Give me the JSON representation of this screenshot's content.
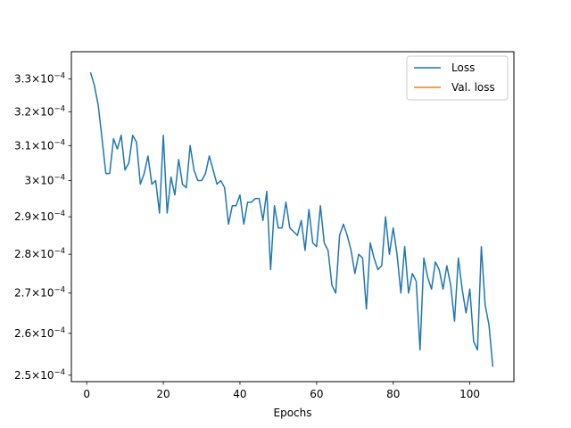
{
  "chart_data": {
    "type": "line",
    "title": "",
    "xlabel": "Epochs",
    "ylabel": "",
    "yscale": "log",
    "xlim": [
      -4,
      111.5
    ],
    "ylim": [
      0.0002485,
      0.0003385
    ],
    "xticks": [
      0,
      20,
      40,
      60,
      80,
      100
    ],
    "xtick_labels": [
      "0",
      "20",
      "40",
      "60",
      "80",
      "100"
    ],
    "yticks": [
      0.00025,
      0.00026,
      0.00027,
      0.00028,
      0.00029,
      0.0003,
      0.00031,
      0.00032,
      0.00033
    ],
    "ytick_labels": [
      {
        "mant": "2.5",
        "exp": "−4"
      },
      {
        "mant": "2.6",
        "exp": "−4"
      },
      {
        "mant": "2.7",
        "exp": "−4"
      },
      {
        "mant": "2.8",
        "exp": "−4"
      },
      {
        "mant": "2.9",
        "exp": "−4"
      },
      {
        "mant": "3",
        "exp": "−4"
      },
      {
        "mant": "3.1",
        "exp": "−4"
      },
      {
        "mant": "3.2",
        "exp": "−4"
      },
      {
        "mant": "3.3",
        "exp": "−4"
      }
    ],
    "legend_position": "top-right",
    "grid": false,
    "series": [
      {
        "name": "Loss",
        "color": "#1f77b4",
        "x": [
          1,
          2,
          3,
          4,
          5,
          6,
          7,
          8,
          9,
          10,
          11,
          12,
          13,
          14,
          15,
          16,
          17,
          18,
          19,
          20,
          21,
          22,
          23,
          24,
          25,
          26,
          27,
          28,
          29,
          30,
          31,
          32,
          33,
          34,
          35,
          36,
          37,
          38,
          39,
          40,
          41,
          42,
          43,
          44,
          45,
          46,
          47,
          48,
          49,
          50,
          51,
          52,
          53,
          54,
          55,
          56,
          57,
          58,
          59,
          60,
          61,
          62,
          63,
          64,
          65,
          66,
          67,
          68,
          69,
          70,
          71,
          72,
          73,
          74,
          75,
          76,
          77,
          78,
          79,
          80,
          81,
          82,
          83,
          84,
          85,
          86,
          87,
          88,
          89,
          90,
          91,
          92,
          93,
          94,
          95,
          96,
          97,
          98,
          99,
          100,
          101,
          102,
          103,
          104,
          105,
          106
        ],
        "values": [
          0.000332,
          0.000328,
          0.000322,
          0.000312,
          0.000302,
          0.000302,
          0.000312,
          0.000309,
          0.000313,
          0.000303,
          0.000305,
          0.000313,
          0.000311,
          0.000299,
          0.000302,
          0.000307,
          0.000299,
          0.0003,
          0.000291,
          0.000313,
          0.000291,
          0.000301,
          0.000296,
          0.000306,
          0.000299,
          0.000298,
          0.00031,
          0.000303,
          0.0003,
          0.0003,
          0.000302,
          0.000307,
          0.000303,
          0.000299,
          0.0003,
          0.000298,
          0.000288,
          0.000293,
          0.000293,
          0.000296,
          0.000288,
          0.000294,
          0.000294,
          0.000295,
          0.000295,
          0.000289,
          0.000297,
          0.000276,
          0.000293,
          0.000287,
          0.000287,
          0.000294,
          0.000287,
          0.000286,
          0.000285,
          0.000289,
          0.000281,
          0.000292,
          0.000283,
          0.000282,
          0.000293,
          0.000283,
          0.000281,
          0.000272,
          0.00027,
          0.000285,
          0.000288,
          0.000285,
          0.000281,
          0.000275,
          0.00028,
          0.000279,
          0.000266,
          0.000283,
          0.000279,
          0.000276,
          0.000277,
          0.00029,
          0.00028,
          0.000287,
          0.00028,
          0.00027,
          0.000282,
          0.00027,
          0.000275,
          0.000273,
          0.000256,
          0.000279,
          0.000274,
          0.000271,
          0.000278,
          0.000276,
          0.000271,
          0.000277,
          0.000272,
          0.000263,
          0.000279,
          0.000271,
          0.000265,
          0.000271,
          0.000258,
          0.000256,
          0.000282,
          0.000267,
          0.000262,
          0.000252
        ]
      },
      {
        "name": "Val. loss",
        "color": "#ff7f0e",
        "x": [],
        "values": []
      }
    ]
  }
}
